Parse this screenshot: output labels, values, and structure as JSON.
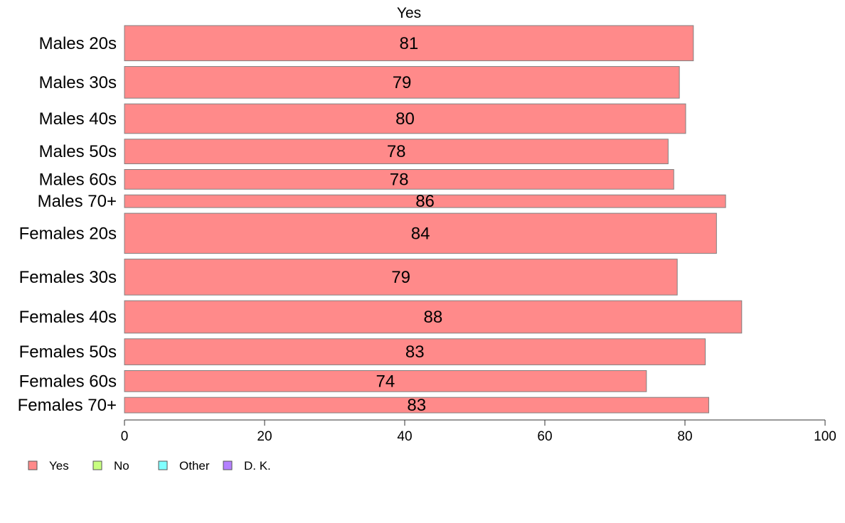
{
  "chart_data": {
    "type": "bar",
    "orientation": "horizontal",
    "title": "Yes",
    "categories": [
      "Males 20s",
      "Males 30s",
      "Males 40s",
      "Males 50s",
      "Males 60s",
      "Males 70+",
      "Females 20s",
      "Females 30s",
      "Females 40s",
      "Females 50s",
      "Females 60s",
      "Females 70+"
    ],
    "series": [
      {
        "name": "Yes",
        "values": [
          81.2,
          79.2,
          80.1,
          77.6,
          78.4,
          85.8,
          84.5,
          78.9,
          88.1,
          82.9,
          74.5,
          83.4
        ],
        "labels": [
          "81",
          "79",
          "80",
          "78",
          "78",
          "86",
          "84",
          "79",
          "88",
          "83",
          "74",
          "83"
        ],
        "weights": [
          50,
          45,
          42,
          35,
          28,
          18,
          57,
          51,
          46,
          37,
          30,
          22
        ],
        "color": "#FF8A8A"
      }
    ],
    "xlim": [
      0,
      100
    ],
    "xticks": [
      0,
      20,
      40,
      60,
      80,
      100
    ],
    "xtick_labels": [
      "0",
      "20",
      "40",
      "60",
      "80",
      "100"
    ],
    "bar_edge_color": "#808080",
    "axis_color": "#333333",
    "grid": false,
    "legend": {
      "placement": "bottom-left",
      "items": [
        {
          "label": "Yes",
          "color": "#FF8A8A"
        },
        {
          "label": "No",
          "color": "#C8FF80"
        },
        {
          "label": "Other",
          "color": "#80FFFF"
        },
        {
          "label": "D. K.",
          "color": "#B480FF"
        }
      ]
    }
  }
}
